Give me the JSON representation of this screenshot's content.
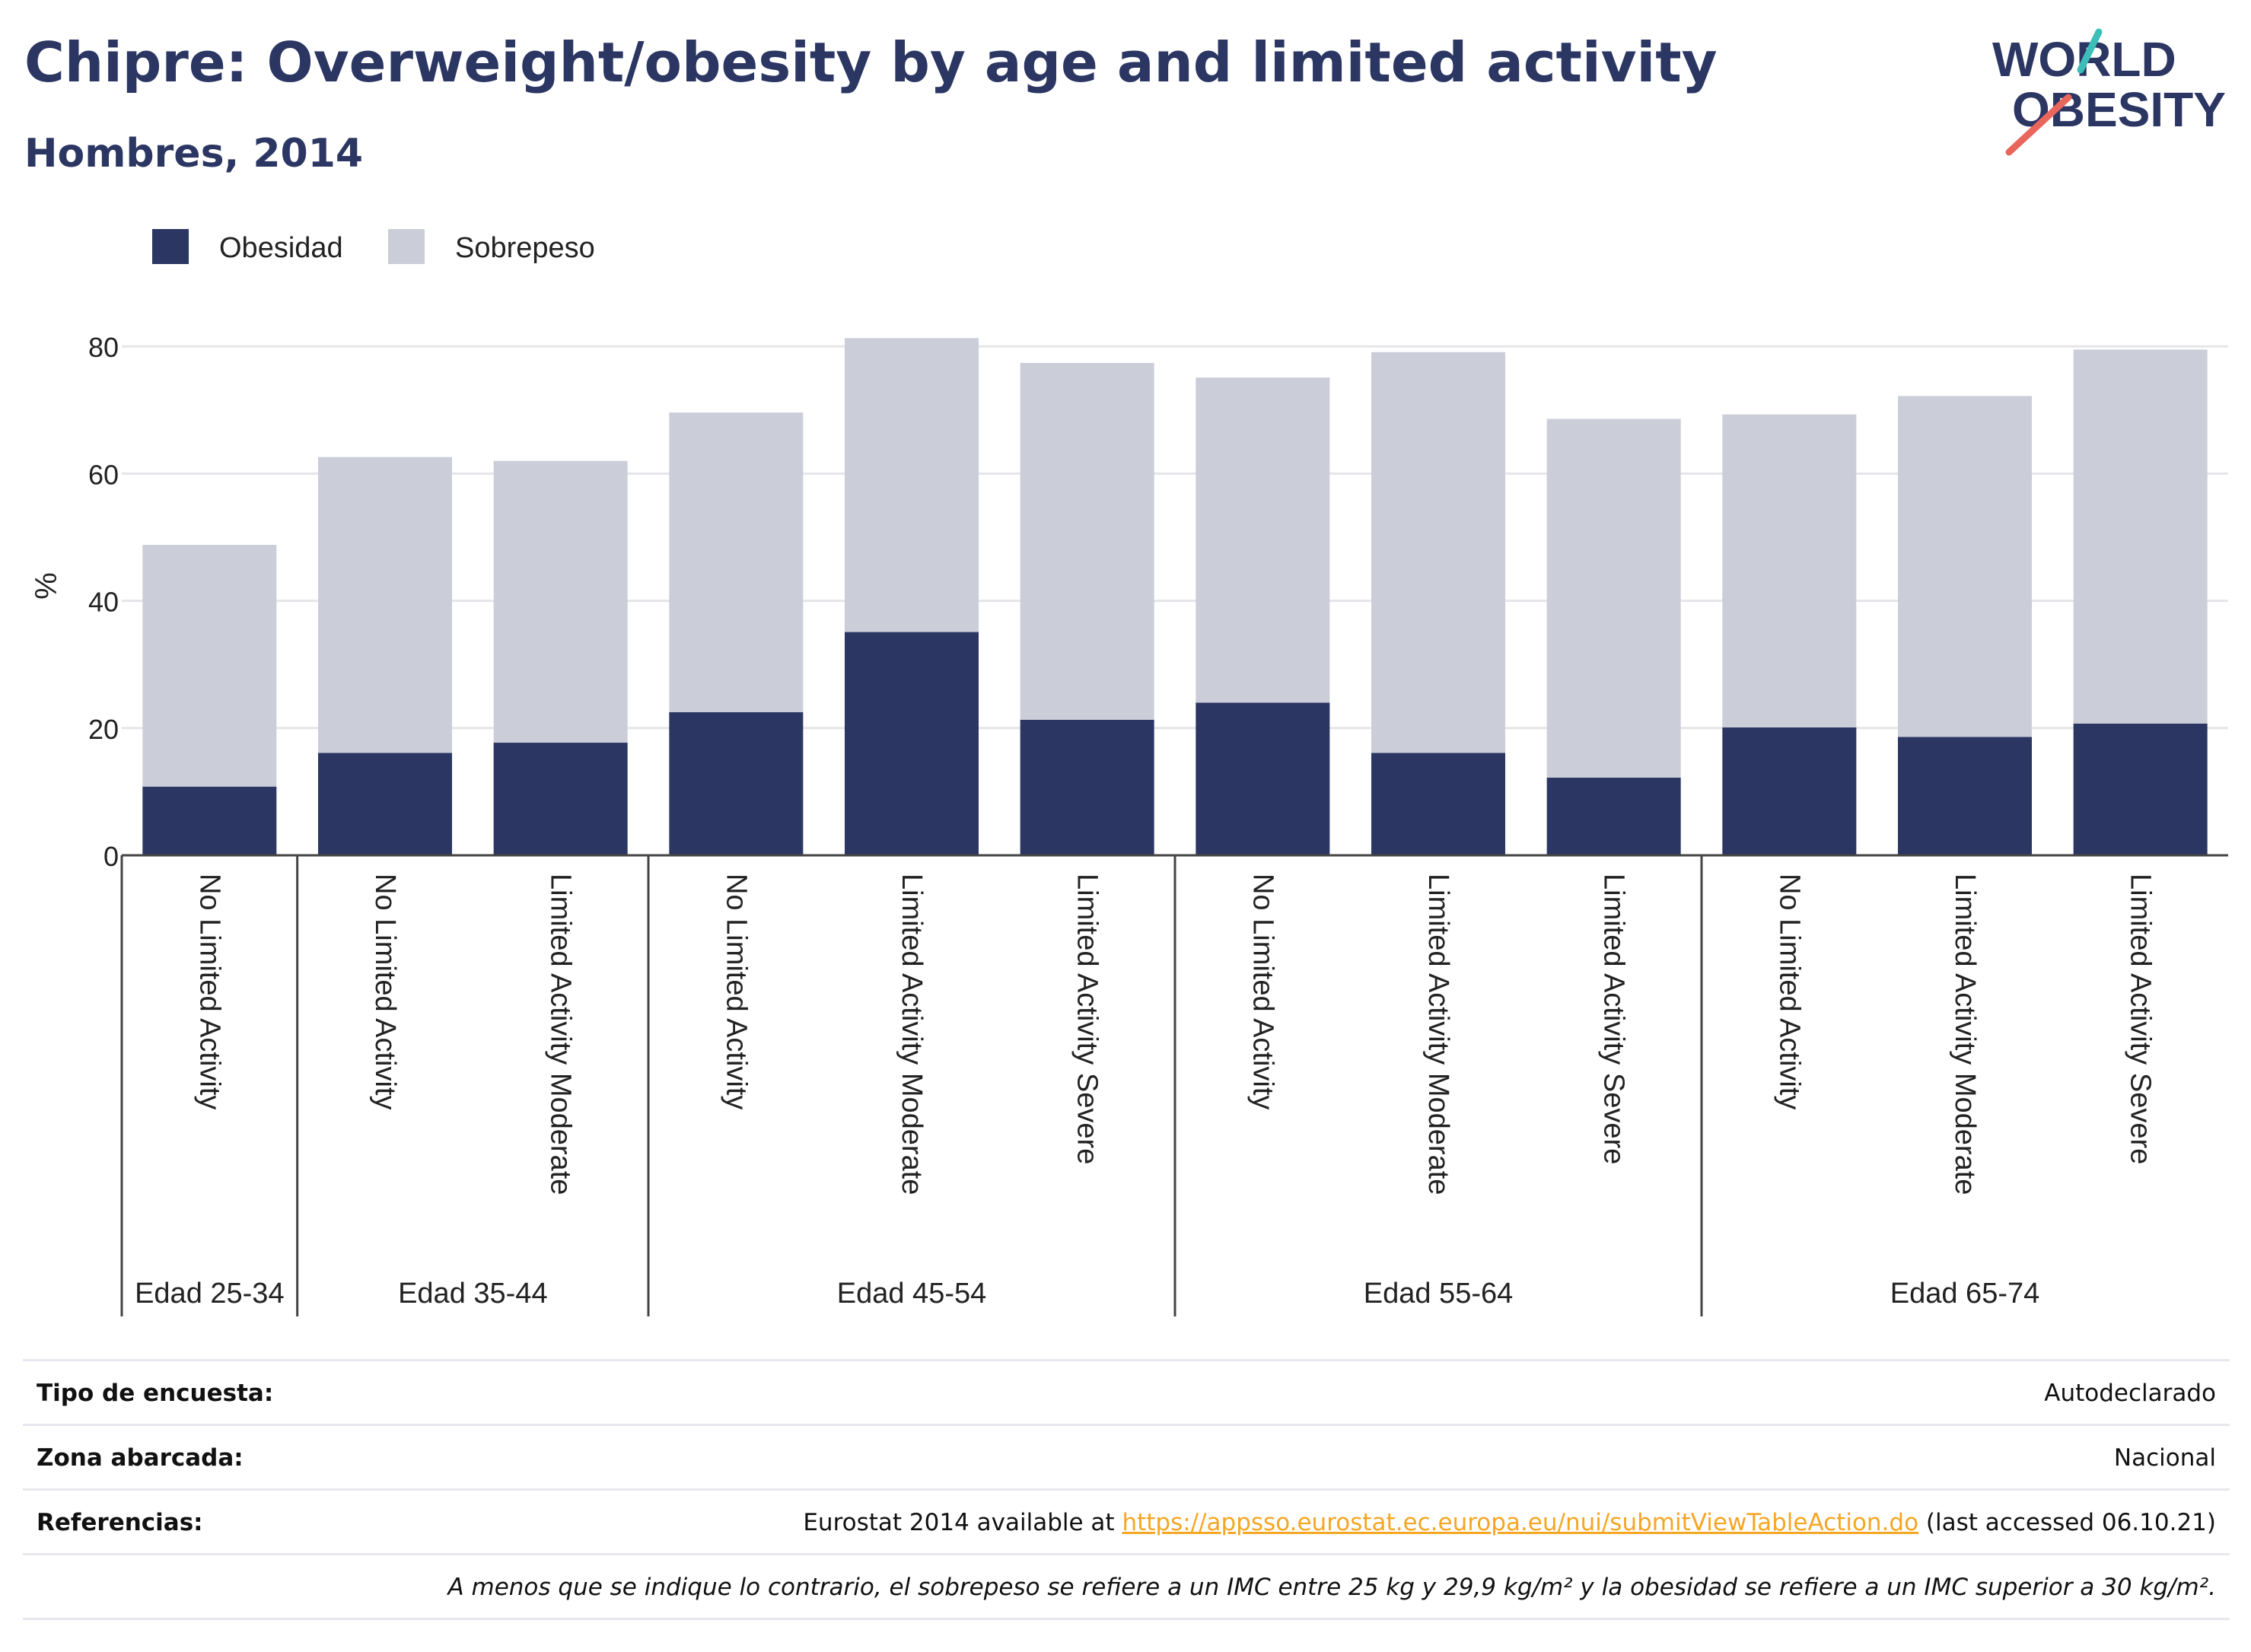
{
  "header": {
    "title": "Chipre: Overweight/obesity by age and limited activity",
    "subtitle": "Hombres, 2014"
  },
  "logo": {
    "line1": "WORLD",
    "line2": "OBESITY"
  },
  "colors": {
    "obesidad": "#2b3663",
    "sobrepeso": "#cbcdd9",
    "title": "#2b3663",
    "link": "#f5a623"
  },
  "chart_data": {
    "type": "bar",
    "stacked": true,
    "ylabel": "%",
    "ylim": [
      0,
      90
    ],
    "yticks": [
      0,
      20,
      40,
      60,
      80
    ],
    "grid": true,
    "legend_position": "top-left",
    "categories": [
      "No Limited Activity",
      "No Limited Activity",
      "Limited Activity Moderate",
      "No Limited Activity",
      "Limited Activity Moderate",
      "Limited Activity Severe",
      "No Limited Activity",
      "Limited Activity Moderate",
      "Limited Activity Severe",
      "No Limited Activity",
      "Limited Activity Moderate",
      "Limited Activity Severe"
    ],
    "groups": [
      {
        "label": "Edad 25-34",
        "count": 1
      },
      {
        "label": "Edad 35-44",
        "count": 2
      },
      {
        "label": "Edad 45-54",
        "count": 3
      },
      {
        "label": "Edad 55-64",
        "count": 3
      },
      {
        "label": "Edad 65-74",
        "count": 3
      }
    ],
    "series": [
      {
        "name": "Obesidad",
        "color": "#2b3663",
        "values": [
          10.8,
          16.1,
          17.7,
          22.5,
          35.1,
          21.3,
          24.0,
          16.1,
          12.2,
          20.1,
          18.6,
          20.7
        ]
      },
      {
        "name": "Sobrepeso",
        "color": "#cbcdd9",
        "values": [
          38.0,
          46.5,
          44.3,
          47.1,
          46.2,
          56.1,
          51.1,
          63.0,
          56.4,
          49.2,
          53.6,
          58.8
        ]
      }
    ]
  },
  "info": {
    "survey_type_label": "Tipo de encuesta:",
    "survey_type_value": "Autodeclarado",
    "area_label": "Zona abarcada:",
    "area_value": "Nacional",
    "references_label": "Referencias:",
    "references_prefix": "Eurostat 2014 available at ",
    "references_link": "https://appsso.eurostat.ec.europa.eu/nui/submitViewTableAction.do",
    "references_suffix": " (last accessed 06.10.21)",
    "footnote": "A menos que se indique lo contrario, el sobrepeso se refiere a un IMC entre 25 kg y 29,9 kg/m² y la obesidad se refiere a un IMC superior a 30 kg/m²."
  }
}
